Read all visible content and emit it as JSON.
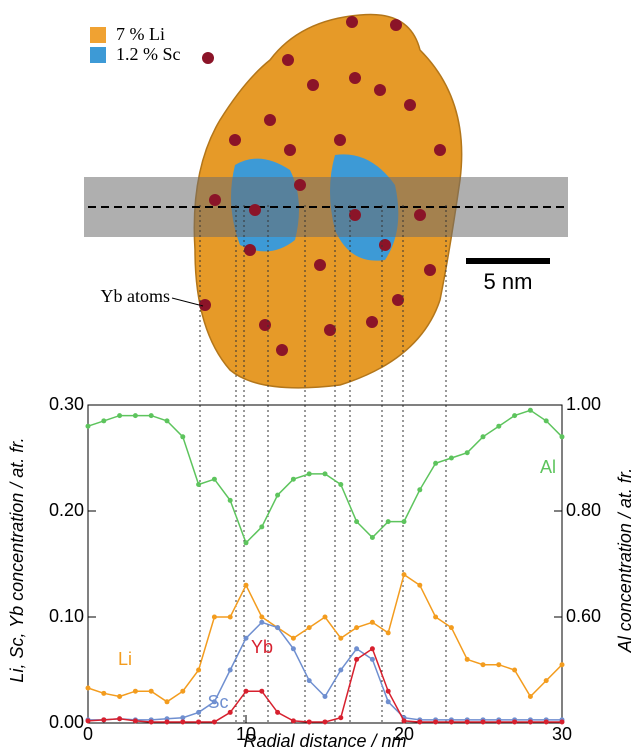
{
  "image_labels": {
    "legend": [
      {
        "label": "7 % Li",
        "color": "#f0a232"
      },
      {
        "label": "1.2 % Sc",
        "color": "#3d9ad6"
      }
    ],
    "atoms": "Yb atoms",
    "scale_bar": "5 nm"
  },
  "chart_data": {
    "type": "line",
    "xlabel": "Radial distance / nm",
    "ylabel": "Li, Sc, Yb concentration / at. fr.",
    "y2label": "Al concentration / at. fr.",
    "x": [
      0,
      1,
      2,
      3,
      4,
      5,
      6,
      7,
      8,
      9,
      10,
      11,
      12,
      13,
      14,
      15,
      16,
      17,
      18,
      19,
      20,
      21,
      22,
      23,
      24,
      25,
      26,
      27,
      28,
      29,
      30
    ],
    "xlim": [
      0,
      30
    ],
    "xticks": [
      0,
      10,
      20,
      30
    ],
    "ylim": [
      0,
      0.3
    ],
    "yticks": [
      {
        "value": 0,
        "label": "0.00"
      },
      {
        "value": 0.1,
        "label": "0.10"
      },
      {
        "value": 0.2,
        "label": "0.20"
      },
      {
        "value": 0.3,
        "label": "0.30"
      }
    ],
    "y2lim": [
      0.4,
      1.0
    ],
    "y2ticks": [
      {
        "value": 0.6,
        "label": "0.60"
      },
      {
        "value": 0.8,
        "label": "0.80"
      },
      {
        "value": 1.0,
        "label": "1.00"
      }
    ],
    "series": [
      {
        "name": "Li",
        "color": "#f39c1e",
        "values": [
          0.033,
          0.028,
          0.025,
          0.03,
          0.03,
          0.02,
          0.03,
          0.05,
          0.1,
          0.1,
          0.13,
          0.1,
          0.09,
          0.08,
          0.09,
          0.1,
          0.08,
          0.09,
          0.095,
          0.085,
          0.14,
          0.13,
          0.1,
          0.09,
          0.06,
          0.055,
          0.055,
          0.05,
          0.025,
          0.04,
          0.055
        ]
      },
      {
        "name": "Sc",
        "color": "#6f8fd0",
        "values": [
          0.003,
          0.003,
          0.004,
          0.003,
          0.003,
          0.004,
          0.005,
          0.01,
          0.02,
          0.05,
          0.08,
          0.095,
          0.09,
          0.07,
          0.04,
          0.025,
          0.05,
          0.07,
          0.06,
          0.02,
          0.005,
          0.003,
          0.003,
          0.003,
          0.003,
          0.003,
          0.003,
          0.003,
          0.003,
          0.003,
          0.003
        ]
      },
      {
        "name": "Yb",
        "color": "#d7202e",
        "values": [
          0.002,
          0.003,
          0.004,
          0.002,
          0.001,
          0.001,
          0.001,
          0.001,
          0.001,
          0.01,
          0.03,
          0.03,
          0.01,
          0.002,
          0.001,
          0.001,
          0.005,
          0.06,
          0.07,
          0.03,
          0.002,
          0.001,
          0.001,
          0.001,
          0.001,
          0.001,
          0.001,
          0.001,
          0.001,
          0.001,
          0.001
        ]
      },
      {
        "name": "Al",
        "color": "#5dc45d",
        "axis": "y2",
        "values": [
          0.96,
          0.97,
          0.98,
          0.98,
          0.98,
          0.97,
          0.94,
          0.85,
          0.86,
          0.82,
          0.74,
          0.77,
          0.83,
          0.86,
          0.87,
          0.87,
          0.85,
          0.78,
          0.75,
          0.78,
          0.78,
          0.84,
          0.89,
          0.9,
          0.91,
          0.94,
          0.96,
          0.98,
          0.99,
          0.97,
          0.94
        ]
      }
    ]
  }
}
